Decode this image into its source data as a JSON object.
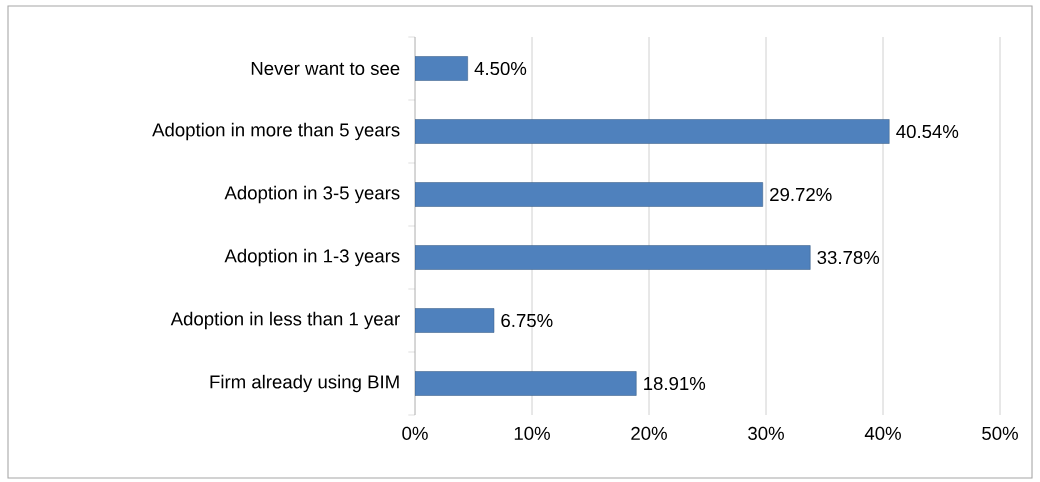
{
  "chart_data": {
    "type": "bar",
    "orientation": "horizontal",
    "categories": [
      "Never want to see",
      "Adoption in more than 5 years",
      "Adoption in 3-5 years",
      "Adoption in 1-3 years",
      "Adoption in less than 1 year",
      "Firm already using BIM"
    ],
    "values": [
      4.5,
      40.54,
      29.72,
      33.78,
      6.75,
      18.91
    ],
    "value_labels": [
      "4.50%",
      "40.54%",
      "29.72%",
      "33.78%",
      "6.75%",
      "18.91%"
    ],
    "color": "#4f81bd",
    "xlim": [
      0,
      50
    ],
    "xticks": [
      {
        "value": 0,
        "label": "0%"
      },
      {
        "value": 10,
        "label": "10%"
      },
      {
        "value": 20,
        "label": "20%"
      },
      {
        "value": 30,
        "label": "30%"
      },
      {
        "value": 40,
        "label": "40%"
      },
      {
        "value": 50,
        "label": "50%"
      }
    ],
    "grid": "x"
  }
}
